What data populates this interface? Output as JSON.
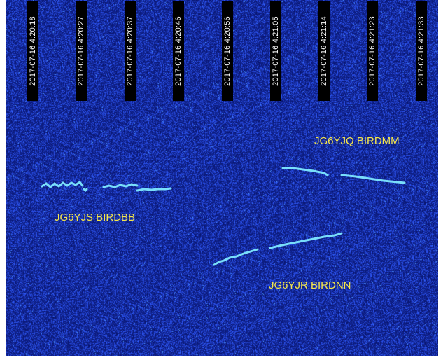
{
  "timestamps": [
    "2017-07-16 4:20:18",
    "2017-07-16 4:20:27",
    "2017-07-16 4:20:37",
    "2017-07-16 4:20:46",
    "2017-07-16 4:20:56",
    "2017-07-16 4:21:05",
    "2017-07-16 4:21:14",
    "2017-07-16 4:21:23",
    "2017-07-16 4:21:33"
  ],
  "labels": {
    "birdbb": "JG6YJS BIRDBB",
    "birdmm": "JG6YJQ BIRDMM",
    "birdnn": "JG6YJR BIRDNN"
  },
  "colors": {
    "background": "#0f1fa0",
    "label": "#f5e64a",
    "trace": "#7fe8ff",
    "timestamp_bg": "#000000",
    "timestamp_text": "#ffffff"
  }
}
